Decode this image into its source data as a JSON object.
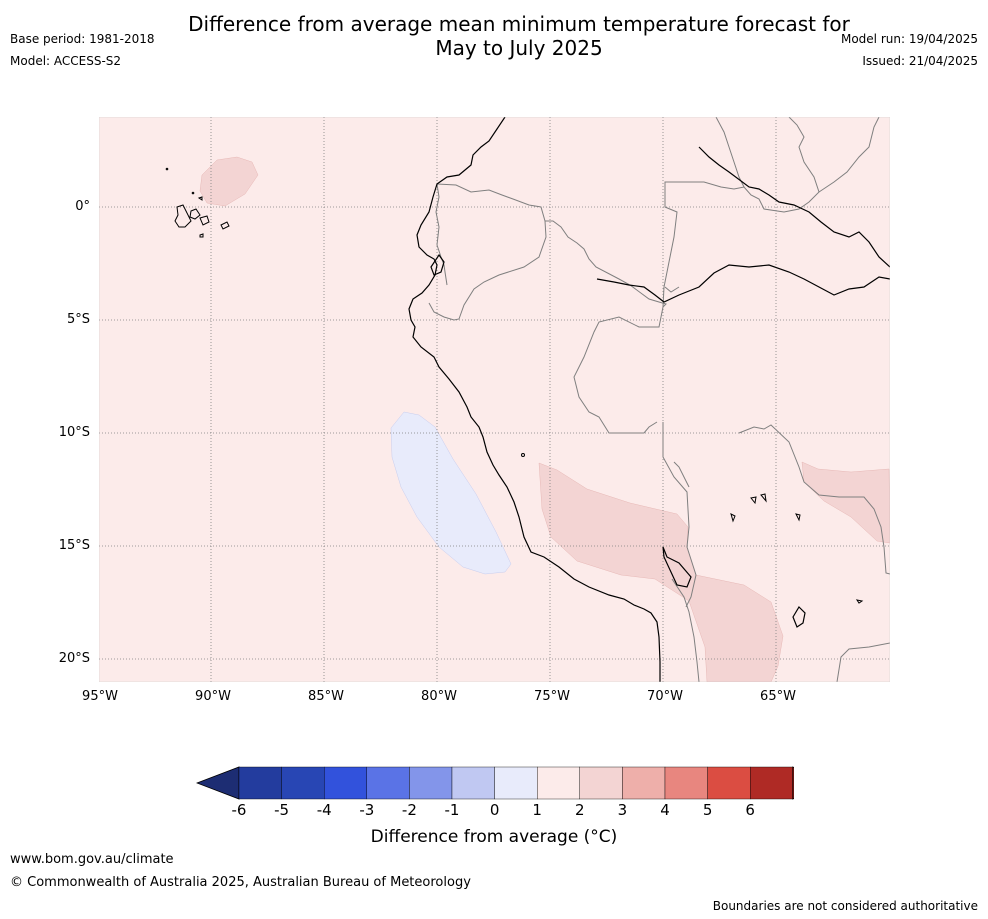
{
  "title_line1": "Difference from average mean minimum temperature forecast for",
  "title_line2": "May to July 2025",
  "base_period": "Base period: 1981-2018",
  "model": "Model: ACCESS-S2",
  "model_run": "Model run: 19/04/2025",
  "issued": "Issued: 21/04/2025",
  "lat_labels": [
    "0°",
    "5°S",
    "10°S",
    "15°S",
    "20°S"
  ],
  "lon_labels": [
    "95°W",
    "90°W",
    "85°W",
    "80°W",
    "75°W",
    "70°W",
    "65°W"
  ],
  "colorbar": {
    "ticks": [
      "-6",
      "-5",
      "-4",
      "-3",
      "-2",
      "-1",
      "0",
      "1",
      "2",
      "3",
      "4",
      "5",
      "6"
    ],
    "colors": [
      "#233c9e",
      "#2846b4",
      "#3252dc",
      "#5a73e6",
      "#8395ea",
      "#c0c8f2",
      "#e8ebfb",
      "#fcebea",
      "#f3d4d3",
      "#eeafaa",
      "#e8867f",
      "#db4d42",
      "#af2a25"
    ],
    "under_color": "#1d2d73",
    "over_color": "#7a1c17",
    "label": "Difference from average (°C)"
  },
  "map_colors": {
    "background": "#fcebea",
    "warm_patch": "#f3d4d3",
    "cool_patch": "#e8ebfb",
    "coast": "#000000",
    "border": "#7f7f7f"
  },
  "footer": {
    "url": "www.bom.gov.au/climate",
    "copyright": "© Commonwealth of Australia 2025, Australian Bureau of Meteorology",
    "disclaimer": "Boundaries are not considered authoritative"
  }
}
